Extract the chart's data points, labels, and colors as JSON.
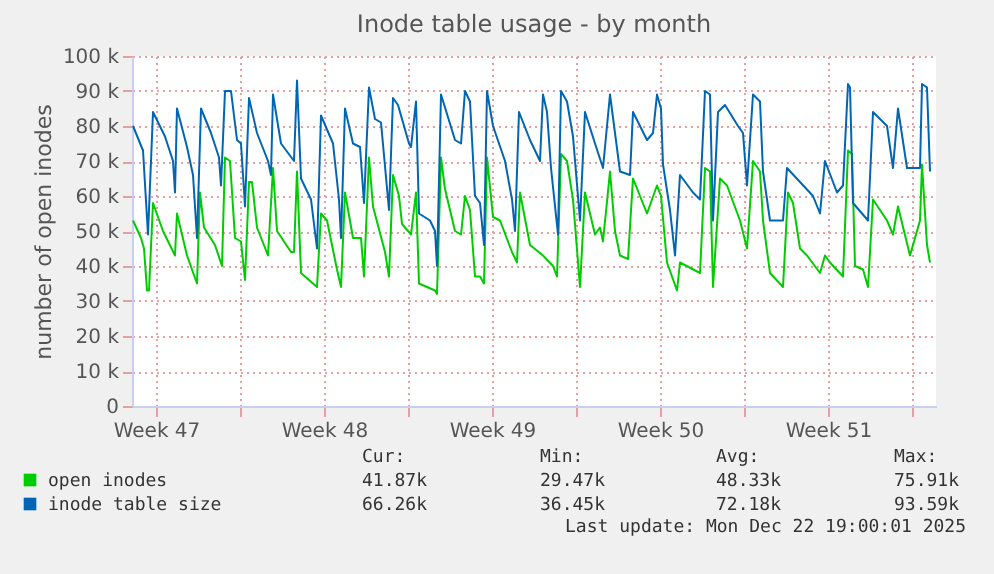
{
  "chart_data": {
    "type": "line",
    "title": "Inode table usage - by month",
    "ylabel": "number of open inodes",
    "xlim": [
      "2025-11-19T12:00",
      "2025-12-23T00:00"
    ],
    "xticks": [
      {
        "value": "2025-11-20T12:00",
        "label": "Week 47"
      },
      {
        "value": "2025-11-24T00:00",
        "label": null
      },
      {
        "value": "2025-11-27T12:00",
        "label": "Week 48"
      },
      {
        "value": "2025-12-01T00:00",
        "label": null
      },
      {
        "value": "2025-12-04T12:00",
        "label": "Week 49"
      },
      {
        "value": "2025-12-08T00:00",
        "label": null
      },
      {
        "value": "2025-12-11T12:00",
        "label": "Week 50"
      },
      {
        "value": "2025-12-15T00:00",
        "label": null
      },
      {
        "value": "2025-12-18T12:00",
        "label": "Week 51"
      },
      {
        "value": "2025-12-22T00:00",
        "label": null
      }
    ],
    "ylim": [
      0,
      100
    ],
    "yticks": [
      0,
      {
        "value": 10,
        "label": "10 k"
      },
      {
        "value": 20,
        "label": "20 k"
      },
      {
        "value": 30,
        "label": "30 k"
      },
      {
        "value": 40,
        "label": "40 k"
      },
      {
        "value": 50,
        "label": "50 k"
      },
      {
        "value": 60,
        "label": "60 k"
      },
      {
        "value": 70,
        "label": "70 k"
      },
      {
        "value": 80,
        "label": "80 k"
      },
      {
        "value": 90,
        "label": "90 k"
      },
      {
        "value": 100,
        "label": "100 k"
      }
    ],
    "grid": true,
    "legend": "bottom",
    "marker": "none",
    "line_style": "solid",
    "series": [
      {
        "name": "open inodes",
        "color": "#00cc00",
        "x": [
          "2025-11-19T13:00",
          "2025-11-19T21:00",
          "2025-11-20T00:00",
          "2025-11-20T03:00",
          "2025-11-20T05:00",
          "2025-11-20T09:00",
          "2025-11-20T19:00",
          "2025-11-21T07:00",
          "2025-11-21T09:00",
          "2025-11-21T19:00",
          "2025-11-22T05:00",
          "2025-11-22T08:00",
          "2025-11-22T12:00",
          "2025-11-22T23:00",
          "2025-11-23T06:00",
          "2025-11-23T09:00",
          "2025-11-23T14:00",
          "2025-11-23T19:00",
          "2025-11-24T01:00",
          "2025-11-24T05:00",
          "2025-11-24T09:00",
          "2025-11-24T12:00",
          "2025-11-24T17:00",
          "2025-11-25T04:00",
          "2025-11-25T09:00",
          "2025-11-25T13:00",
          "2025-11-26T03:00",
          "2025-11-26T06:00",
          "2025-11-26T09:00",
          "2025-11-26T13:00",
          "2025-11-27T01:00",
          "2025-11-27T05:00",
          "2025-11-27T09:00",
          "2025-11-27T15:00",
          "2025-11-28T01:00",
          "2025-11-28T05:00",
          "2025-11-28T09:00",
          "2025-11-28T17:00",
          "2025-11-29T01:00",
          "2025-11-29T04:00",
          "2025-11-29T09:00",
          "2025-11-29T13:00",
          "2025-11-30T01:00",
          "2025-11-30T05:00",
          "2025-11-30T09:00",
          "2025-11-30T15:00",
          "2025-11-30T18:00",
          "2025-12-01T03:00",
          "2025-12-01T08:00",
          "2025-12-01T11:00",
          "2025-12-02T03:00",
          "2025-12-02T05:00",
          "2025-12-02T09:00",
          "2025-12-02T13:00",
          "2025-12-02T23:00",
          "2025-12-03T05:00",
          "2025-12-03T09:00",
          "2025-12-03T14:00",
          "2025-12-03T19:00",
          "2025-12-04T00:00",
          "2025-12-04T04:00",
          "2025-12-04T07:00",
          "2025-12-04T13:00",
          "2025-12-04T20:00",
          "2025-12-05T08:00",
          "2025-12-05T13:00",
          "2025-12-05T16:00",
          "2025-12-06T02:00",
          "2025-12-06T15:00",
          "2025-12-07T01:00",
          "2025-12-07T05:00",
          "2025-12-07T09:00",
          "2025-12-07T15:00",
          "2025-12-07T21:00",
          "2025-12-08T04:00",
          "2025-12-08T09:00",
          "2025-12-08T19:00",
          "2025-12-09T00:00",
          "2025-12-09T03:00",
          "2025-12-09T10:00",
          "2025-12-09T15:00",
          "2025-12-09T20:00",
          "2025-12-10T04:00",
          "2025-12-10T09:00",
          "2025-12-10T23:00",
          "2025-12-11T09:00",
          "2025-12-11T13:00",
          "2025-12-11T19:00",
          "2025-12-12T05:00",
          "2025-12-12T08:00",
          "2025-12-13T04:00",
          "2025-12-13T09:00",
          "2025-12-13T14:00",
          "2025-12-13T17:00",
          "2025-12-14T00:00",
          "2025-12-14T07:00",
          "2025-12-14T20:00",
          "2025-12-15T03:00",
          "2025-12-15T09:00",
          "2025-12-15T16:00",
          "2025-12-15T19:00",
          "2025-12-16T02:00",
          "2025-12-16T15:00",
          "2025-12-16T20:00",
          "2025-12-17T01:00",
          "2025-12-17T08:00",
          "2025-12-17T15:00",
          "2025-12-18T04:00",
          "2025-12-18T09:00",
          "2025-12-18T14:00",
          "2025-12-19T03:00",
          "2025-12-19T08:00",
          "2025-12-19T12:00",
          "2025-12-19T15:00",
          "2025-12-19T23:00",
          "2025-12-20T04:00",
          "2025-12-20T09:00",
          "2025-12-20T23:00",
          "2025-12-21T05:00",
          "2025-12-21T10:00",
          "2025-12-21T22:00",
          "2025-12-22T08:00",
          "2025-12-22T10:00",
          "2025-12-22T15:00",
          "2025-12-22T18:00"
        ],
        "values": [
          53,
          48,
          45,
          33,
          33,
          58,
          50,
          43,
          55,
          43,
          35,
          61,
          51,
          46,
          40,
          71,
          70,
          48,
          47,
          36,
          64,
          64,
          51,
          43,
          68,
          50,
          44,
          44,
          67,
          38,
          35,
          34,
          55,
          53,
          39,
          34,
          61,
          48,
          48,
          37,
          71,
          57,
          44,
          37,
          66,
          60,
          52,
          49,
          61,
          35,
          33,
          32,
          71,
          62,
          50,
          49,
          60,
          56,
          37,
          37,
          35,
          71,
          54,
          53,
          44,
          41,
          61,
          46,
          43,
          40,
          37,
          72,
          70,
          59,
          34,
          61,
          49,
          51,
          47,
          67,
          50,
          43,
          42,
          65,
          55,
          63,
          60,
          41,
          33,
          41,
          38,
          68,
          67,
          34,
          65,
          63,
          53,
          45,
          70,
          67,
          53,
          38,
          34,
          61,
          58,
          45,
          43,
          38,
          43,
          41,
          37,
          73,
          72,
          40,
          39,
          34,
          59,
          53,
          49,
          57,
          43,
          53,
          69,
          46,
          41
        ]
      },
      {
        "name": "inode table size",
        "color": "#0066b3",
        "x": [
          "2025-11-19T13:00",
          "2025-11-19T23:00",
          "2025-11-20T04:00",
          "2025-11-20T09:00",
          "2025-11-20T21:00",
          "2025-11-21T05:00",
          "2025-11-21T07:00",
          "2025-11-21T09:00",
          "2025-11-21T19:00",
          "2025-11-22T01:00",
          "2025-11-22T05:00",
          "2025-11-22T09:00",
          "2025-11-22T19:00",
          "2025-11-23T03:00",
          "2025-11-23T05:00",
          "2025-11-23T09:00",
          "2025-11-23T15:00",
          "2025-11-23T21:00",
          "2025-11-24T01:00",
          "2025-11-24T05:00",
          "2025-11-24T09:00",
          "2025-11-24T17:00",
          "2025-11-25T04:00",
          "2025-11-25T07:00",
          "2025-11-25T09:00",
          "2025-11-25T17:00",
          "2025-11-26T06:00",
          "2025-11-26T09:00",
          "2025-11-26T13:00",
          "2025-11-26T23:00",
          "2025-11-27T05:00",
          "2025-11-27T09:00",
          "2025-11-27T21:00",
          "2025-11-28T03:00",
          "2025-11-28T05:00",
          "2025-11-28T09:00",
          "2025-11-28T17:00",
          "2025-11-29T00:00",
          "2025-11-29T04:00",
          "2025-11-29T09:00",
          "2025-11-29T15:00",
          "2025-11-29T21:00",
          "2025-11-30T05:00",
          "2025-11-30T09:00",
          "2025-11-30T14:00",
          "2025-12-01T01:00",
          "2025-12-01T03:00",
          "2025-12-01T08:00",
          "2025-12-01T11:00",
          "2025-12-01T22:00",
          "2025-12-02T03:00",
          "2025-12-02T05:00",
          "2025-12-02T09:00",
          "2025-12-02T23:00",
          "2025-12-03T05:00",
          "2025-12-03T09:00",
          "2025-12-03T14:00",
          "2025-12-03T19:00",
          "2025-12-04T00:00",
          "2025-12-04T04:00",
          "2025-12-04T07:00",
          "2025-12-04T13:00",
          "2025-12-05T01:00",
          "2025-12-05T08:00",
          "2025-12-05T11:00",
          "2025-12-05T15:00",
          "2025-12-06T02:00",
          "2025-12-06T12:00",
          "2025-12-06T15:00",
          "2025-12-06T19:00",
          "2025-12-06T23:00",
          "2025-12-07T06:00",
          "2025-12-07T09:00",
          "2025-12-07T15:00",
          "2025-12-07T21:00",
          "2025-12-08T04:00",
          "2025-12-08T09:00",
          "2025-12-08T19:00",
          "2025-12-09T03:00",
          "2025-12-09T10:00",
          "2025-12-09T15:00",
          "2025-12-09T20:00",
          "2025-12-10T06:00",
          "2025-12-10T09:00",
          "2025-12-10T23:00",
          "2025-12-11T05:00",
          "2025-12-11T09:00",
          "2025-12-11T13:00",
          "2025-12-11T15:00",
          "2025-12-11T22:00",
          "2025-12-12T03:00",
          "2025-12-12T08:00",
          "2025-12-12T21:00",
          "2025-12-13T04:00",
          "2025-12-13T09:00",
          "2025-12-13T14:00",
          "2025-12-13T17:00",
          "2025-12-13T22:00",
          "2025-12-14T05:00",
          "2025-12-14T18:00",
          "2025-12-14T23:00",
          "2025-12-15T03:00",
          "2025-12-15T09:00",
          "2025-12-15T16:00",
          "2025-12-15T19:00",
          "2025-12-16T02:00",
          "2025-12-16T15:00",
          "2025-12-16T19:00",
          "2025-12-17T08:00",
          "2025-12-17T21:00",
          "2025-12-18T04:00",
          "2025-12-18T09:00",
          "2025-12-18T21:00",
          "2025-12-19T03:00",
          "2025-12-19T08:00",
          "2025-12-19T10:00",
          "2025-12-19T13:00",
          "2025-12-20T04:00",
          "2025-12-20T09:00",
          "2025-12-20T23:00",
          "2025-12-21T05:00",
          "2025-12-21T10:00",
          "2025-12-21T19:00",
          "2025-12-22T08:00",
          "2025-12-22T10:00",
          "2025-12-22T15:00",
          "2025-12-22T18:00"
        ],
        "values": [
          80,
          73,
          49,
          84,
          77,
          70,
          61,
          85,
          74,
          66,
          48,
          85,
          78,
          71,
          63,
          90,
          90,
          76,
          75,
          57,
          88,
          78,
          70,
          66,
          89,
          75,
          70,
          93,
          65,
          59,
          45,
          83,
          75,
          59,
          48,
          85,
          75,
          74,
          58,
          91,
          82,
          81,
          56,
          88,
          86,
          75,
          74,
          87,
          55,
          53,
          50,
          40,
          89,
          76,
          75,
          90,
          87,
          60,
          58,
          46,
          90,
          80,
          70,
          59,
          50,
          84,
          76,
          70,
          89,
          84,
          68,
          49,
          90,
          87,
          77,
          53,
          84,
          75,
          68,
          89,
          78,
          67,
          66,
          84,
          76,
          78,
          89,
          85,
          69,
          56,
          43,
          66,
          61,
          59,
          90,
          89,
          53,
          84,
          86,
          80,
          78,
          63,
          89,
          87,
          67,
          53,
          53,
          68,
          64,
          60,
          55,
          70,
          61,
          63,
          92,
          91,
          58,
          53,
          84,
          80,
          68,
          85,
          68,
          68,
          92,
          91,
          67
        ]
      }
    ],
    "annotations": [
      "Cur:",
      "Min:",
      "Avg:",
      "Max:",
      "41.87k",
      "29.47k",
      "48.33k",
      "75.91k",
      "66.26k",
      "36.45k",
      "72.18k",
      "93.59k",
      "Last update: Mon Dec 22 19:00:01 2025"
    ]
  }
}
